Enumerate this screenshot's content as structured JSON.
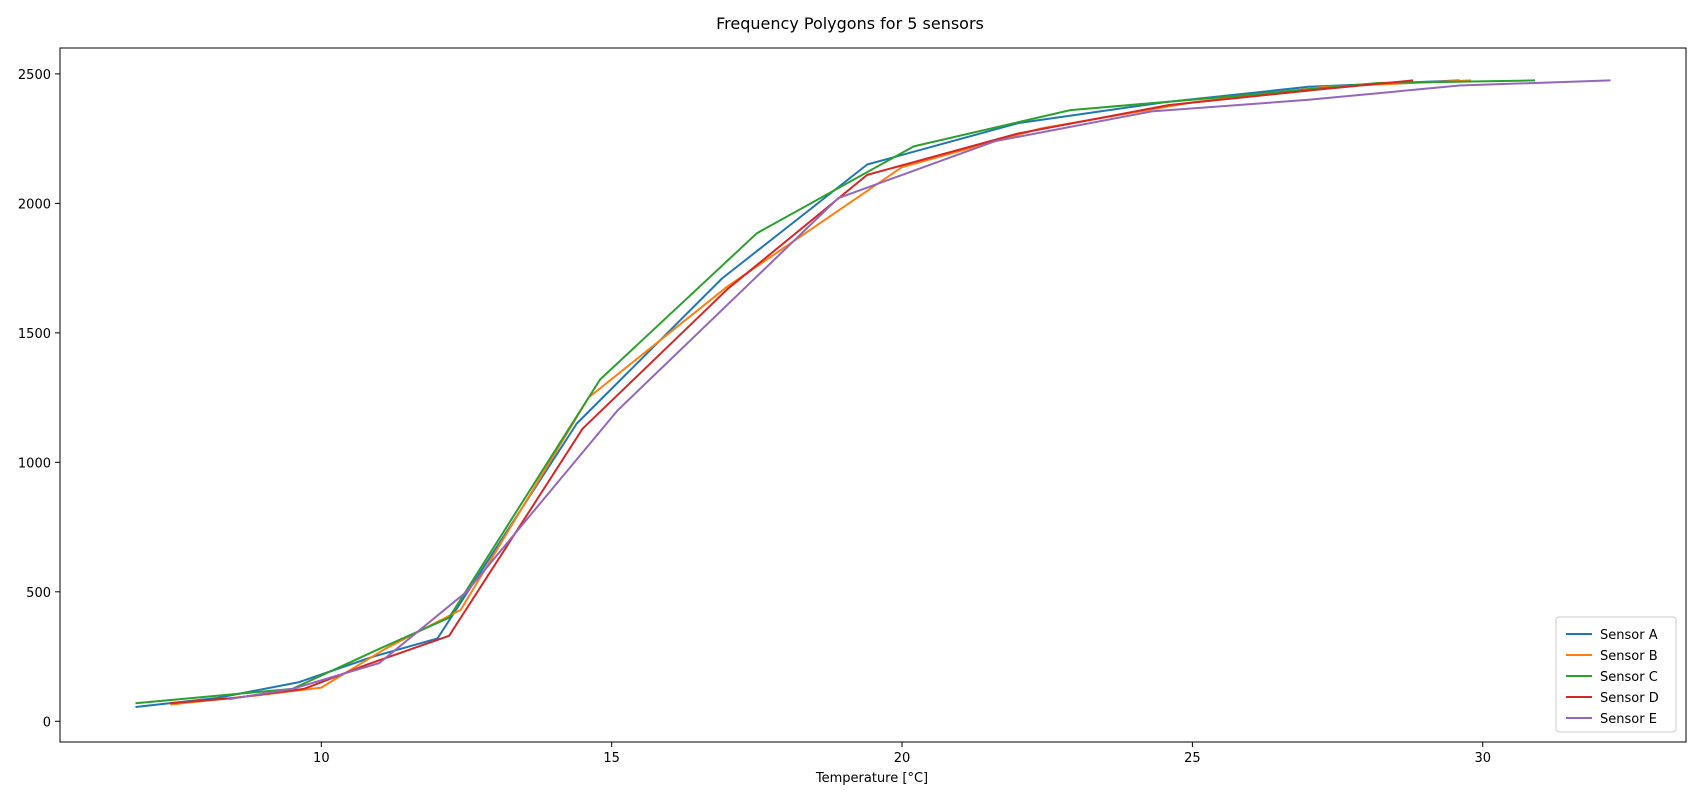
{
  "chart_data": {
    "type": "line",
    "title": "Frequency Polygons for 5 sensors",
    "xlabel": "Temperature [°C]",
    "ylabel": "",
    "xlim": [
      5.5,
      33.5
    ],
    "ylim": [
      -80,
      2600
    ],
    "x_ticks": [
      10,
      15,
      20,
      25,
      30
    ],
    "y_ticks": [
      0,
      500,
      1000,
      1500,
      2000,
      2500
    ],
    "grid": false,
    "legend_position": "lower-right",
    "series": [
      {
        "name": "Sensor A",
        "color": "#1f77b4",
        "x": [
          6.8,
          8.2,
          9.6,
          10.9,
          12.0,
          14.4,
          16.9,
          19.4,
          22.0,
          24.5,
          27.0,
          29.6
        ],
        "y": [
          55,
          90,
          150,
          250,
          320,
          1150,
          1710,
          2150,
          2310,
          2390,
          2450,
          2475
        ]
      },
      {
        "name": "Sensor B",
        "color": "#ff7f0e",
        "x": [
          7.4,
          8.9,
          10.0,
          11.1,
          12.4,
          14.6,
          17.0,
          20.0,
          22.4,
          25.0,
          27.3,
          29.8
        ],
        "y": [
          65,
          100,
          130,
          280,
          430,
          1250,
          1680,
          2140,
          2290,
          2390,
          2450,
          2475
        ]
      },
      {
        "name": "Sensor C",
        "color": "#2ca02c",
        "x": [
          6.8,
          9.5,
          11.0,
          12.2,
          14.8,
          17.5,
          20.2,
          22.9,
          25.5,
          28.2,
          30.9
        ],
        "y": [
          70,
          125,
          280,
          400,
          1320,
          1885,
          2220,
          2360,
          2410,
          2465,
          2475
        ]
      },
      {
        "name": "Sensor D",
        "color": "#d62728",
        "x": [
          7.4,
          8.5,
          9.7,
          10.8,
          12.2,
          14.5,
          17.0,
          19.4,
          22.0,
          24.6,
          27.2,
          28.8
        ],
        "y": [
          70,
          90,
          125,
          220,
          330,
          1130,
          1670,
          2110,
          2270,
          2380,
          2440,
          2475
        ]
      },
      {
        "name": "Sensor E",
        "color": "#9467bd",
        "x": [
          8.4,
          9.5,
          11.0,
          12.5,
          15.1,
          18.9,
          21.6,
          24.3,
          27.0,
          29.6,
          32.2
        ],
        "y": [
          85,
          125,
          225,
          500,
          1200,
          2020,
          2240,
          2355,
          2400,
          2455,
          2475
        ]
      }
    ]
  }
}
